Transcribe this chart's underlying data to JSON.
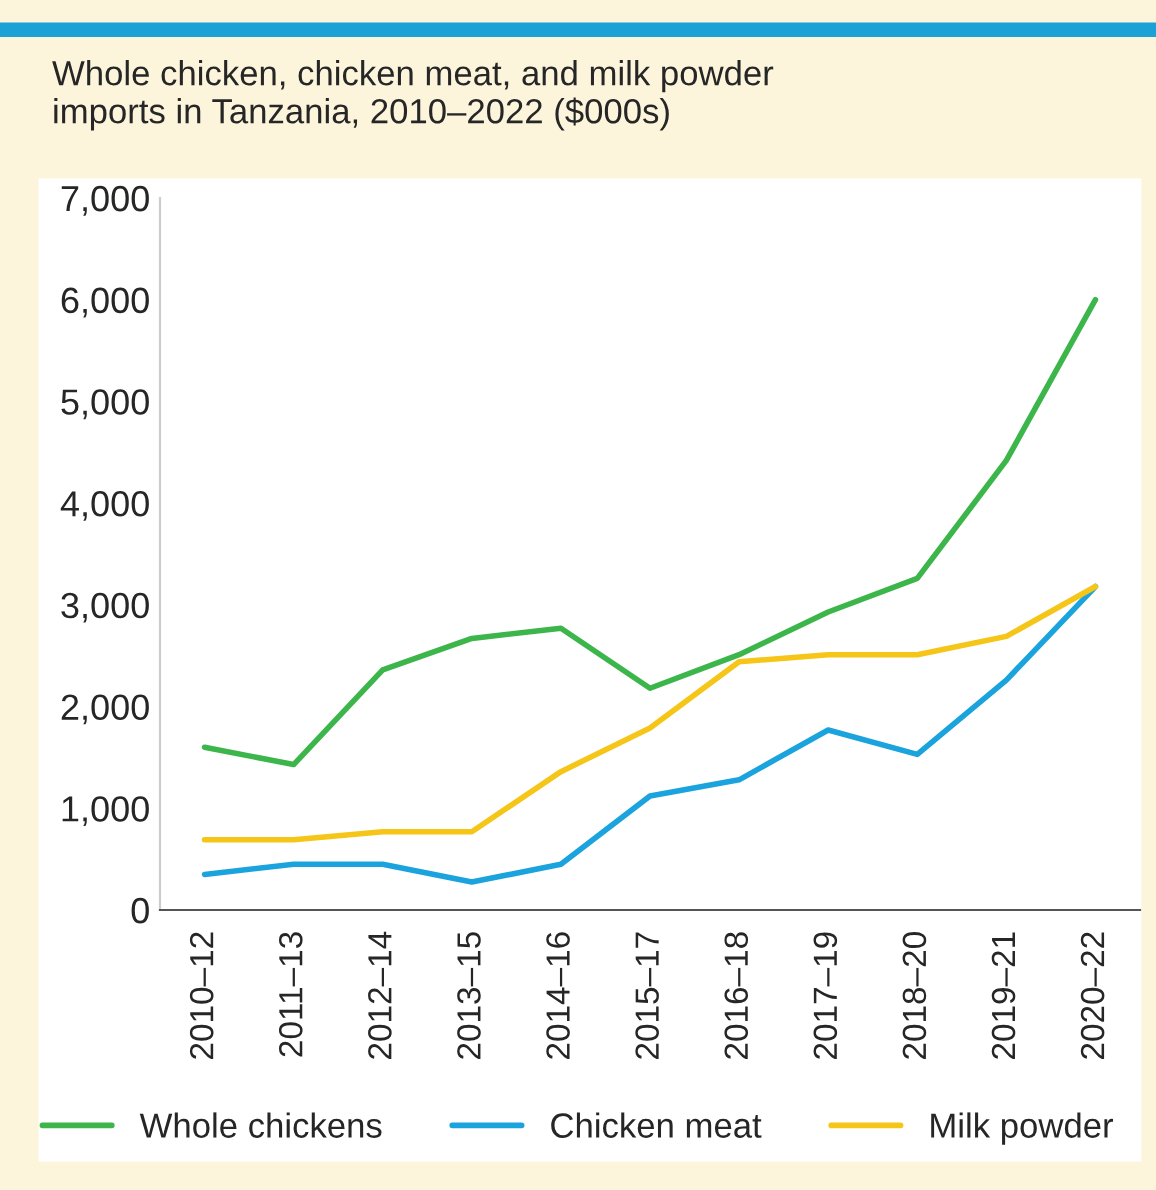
{
  "chart_data": {
    "type": "line",
    "title": "Whole chicken, chicken meat, and milk powder\nimports in Tanzania, 2010–2022 ($000s)",
    "categories": [
      "2010–12",
      "2011–13",
      "2012–14",
      "2013–15",
      "2014–16",
      "2015–17",
      "2016–18",
      "2017–19",
      "2018–20",
      "2019–21",
      "2020–22"
    ],
    "series": [
      {
        "name": "Whole chickens",
        "color": "#3cb54a",
        "values": [
          1600,
          1430,
          2360,
          2670,
          2770,
          2180,
          2510,
          2930,
          3260,
          4420,
          6000
        ]
      },
      {
        "name": "Chicken meat",
        "color": "#1aa3dc",
        "values": [
          350,
          450,
          450,
          275,
          450,
          1120,
          1280,
          1770,
          1530,
          2260,
          3180
        ]
      },
      {
        "name": "Milk powder",
        "color": "#f5c518",
        "values": [
          690,
          690,
          770,
          770,
          1360,
          1790,
          2440,
          2510,
          2510,
          2690,
          3180
        ]
      }
    ],
    "ylim": [
      0,
      7000
    ],
    "yticks": [
      {
        "value": 0,
        "label": "0"
      },
      {
        "value": 1000,
        "label": "1,000"
      },
      {
        "value": 2000,
        "label": "2,000"
      },
      {
        "value": 3000,
        "label": "3,000"
      },
      {
        "value": 4000,
        "label": "4,000"
      },
      {
        "value": 5000,
        "label": "5,000"
      },
      {
        "value": 6000,
        "label": "6,000"
      },
      {
        "value": 7000,
        "label": "7,000"
      }
    ],
    "grid": false,
    "legend": "bottom",
    "marker": "none",
    "line_style": "solid"
  }
}
